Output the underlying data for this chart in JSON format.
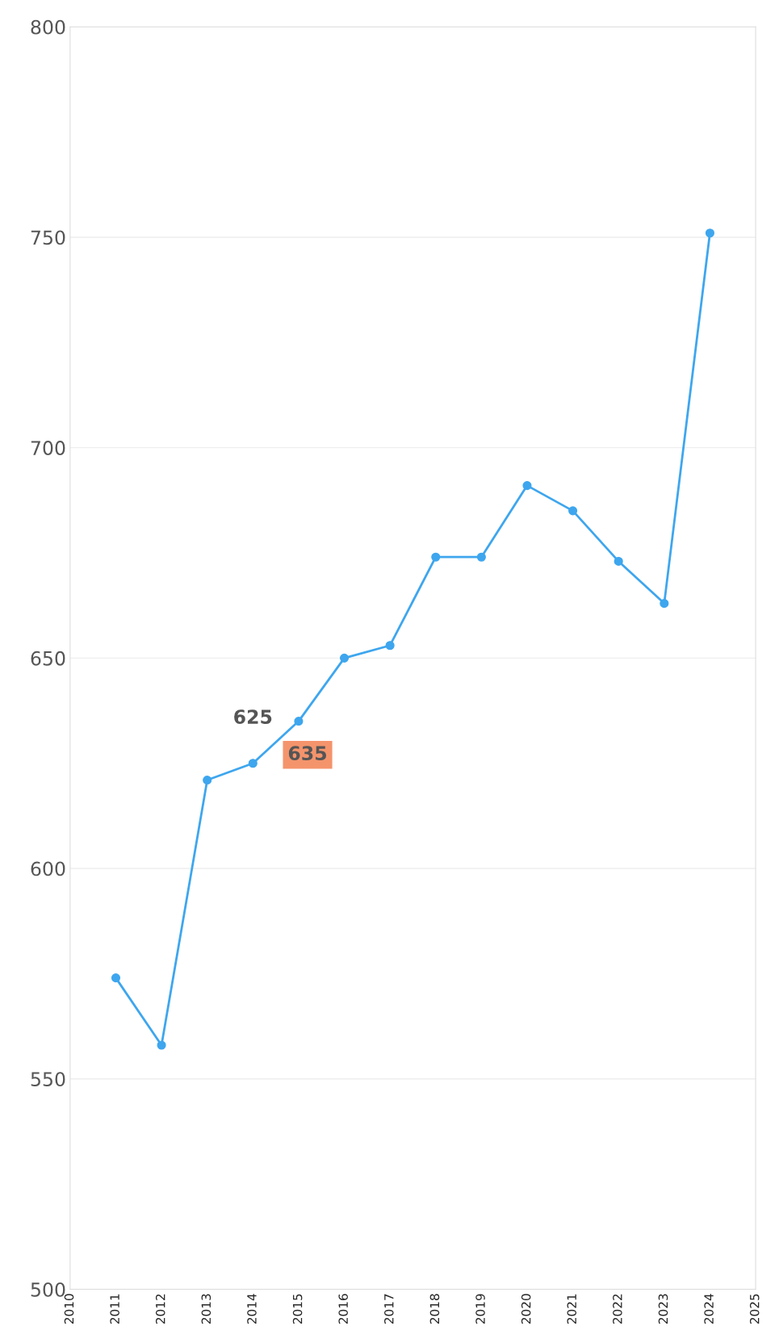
{
  "chart_data": {
    "type": "line",
    "x": [
      2011,
      2012,
      2013,
      2014,
      2015,
      2016,
      2017,
      2018,
      2019,
      2020,
      2021,
      2022,
      2023,
      2024
    ],
    "series": [
      {
        "color": "#3ea6ee",
        "values": [
          574,
          558,
          621,
          625,
          635,
          650,
          653,
          674,
          674,
          691,
          685,
          673,
          663,
          751
        ]
      }
    ],
    "xlim": [
      2010,
      2025
    ],
    "xticks": [
      2010,
      2011,
      2012,
      2013,
      2014,
      2015,
      2016,
      2017,
      2018,
      2019,
      2020,
      2021,
      2022,
      2023,
      2024,
      2025
    ],
    "ylim": [
      500,
      800
    ],
    "yticks": [
      500,
      550,
      600,
      650,
      700,
      750,
      800
    ],
    "grid": "y",
    "marker": "circle",
    "line_style": "solid",
    "legend": false,
    "annotations": [
      {
        "text": "625",
        "x": 2014,
        "y": 625
      },
      {
        "text": "635",
        "x": 2015,
        "y": 635
      }
    ]
  }
}
